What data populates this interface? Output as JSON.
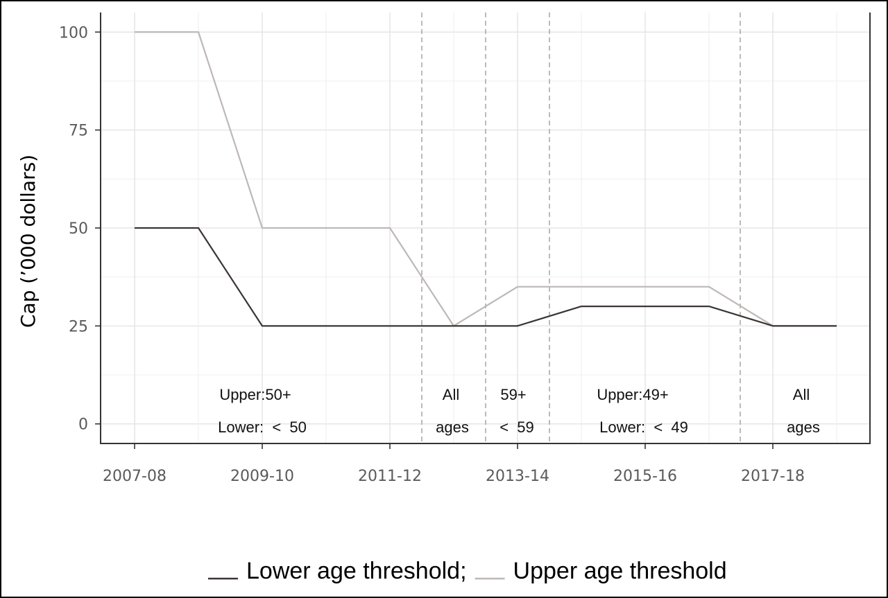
{
  "chart_data": {
    "type": "line",
    "y_label": "Cap (’000 dollars)",
    "categories": [
      "2007-08",
      null,
      "2009-10",
      null,
      "2011-12",
      null,
      "2013-14",
      null,
      "2015-16",
      null,
      "2017-18",
      null
    ],
    "series": [
      {
        "name": "Lower age threshold;",
        "color": "#3a3533",
        "values": [
          50,
          50,
          25,
          25,
          25,
          25,
          25,
          30,
          30,
          30,
          25,
          25
        ]
      },
      {
        "name": "Upper age threshold",
        "color": "#bdb8b6",
        "values": [
          100,
          100,
          50,
          50,
          50,
          25,
          35,
          35,
          35,
          35,
          25,
          25
        ]
      }
    ],
    "ylim": [
      -5,
      105
    ],
    "yticks": [
      0,
      25,
      50,
      75,
      100
    ],
    "grid": true,
    "legend": "bottom",
    "annotations": [
      [
        "Upper:50+",
        "Lower:  <  50"
      ],
      [
        "All",
        "ages"
      ],
      [
        "59+",
        "<  59"
      ],
      [
        "Upper:49+",
        "Lower:  <  49"
      ],
      [
        "All",
        "ages"
      ]
    ]
  }
}
